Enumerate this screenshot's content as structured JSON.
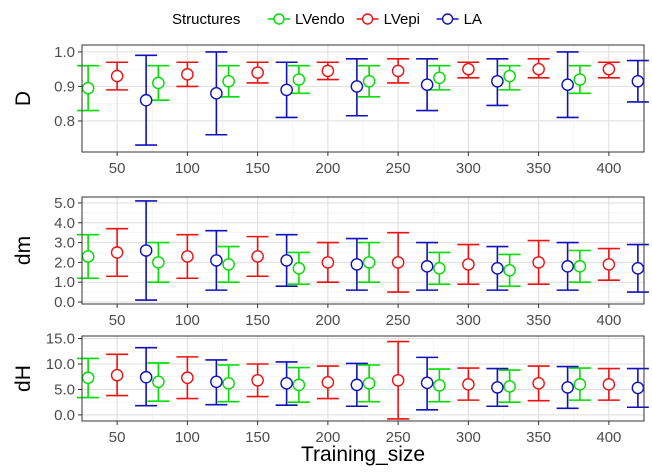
{
  "chart_data": {
    "type": "errorbar",
    "legend": {
      "title": "Structures",
      "position": "top",
      "entries": [
        {
          "name": "LVendo",
          "color": "#00dd00"
        },
        {
          "name": "LVepi",
          "color": "#ee1111"
        },
        {
          "name": "LA",
          "color": "#1111bb"
        }
      ]
    },
    "xlabel": "Training_size",
    "categories": [
      "50",
      "100",
      "150",
      "200",
      "250",
      "300",
      "350",
      "400"
    ],
    "panels": [
      {
        "ylabel": "D",
        "ylim": [
          0.71,
          1.02
        ],
        "yticks": [
          0.8,
          0.9,
          1.0
        ],
        "ytick_labels": [
          "0.8",
          "0.9",
          "1.0"
        ],
        "series": [
          {
            "name": "LVendo",
            "mean": [
              0.895,
              0.91,
              0.915,
              0.92,
              0.915,
              0.925,
              0.93,
              0.92
            ],
            "lower": [
              0.83,
              0.86,
              0.87,
              0.88,
              0.87,
              0.89,
              0.89,
              0.88
            ],
            "upper": [
              0.96,
              0.96,
              0.96,
              0.96,
              0.96,
              0.96,
              0.96,
              0.96
            ]
          },
          {
            "name": "LVepi",
            "mean": [
              0.93,
              0.935,
              0.94,
              0.945,
              0.945,
              0.95,
              0.95,
              0.95
            ],
            "lower": [
              0.89,
              0.9,
              0.91,
              0.92,
              0.91,
              0.925,
              0.925,
              0.925
            ],
            "upper": [
              0.97,
              0.97,
              0.97,
              0.97,
              0.98,
              0.97,
              0.98,
              0.97
            ]
          },
          {
            "name": "LA",
            "mean": [
              0.86,
              0.88,
              0.89,
              0.9,
              0.905,
              0.915,
              0.905,
              0.915
            ],
            "lower": [
              0.73,
              0.76,
              0.81,
              0.815,
              0.83,
              0.845,
              0.81,
              0.855
            ],
            "upper": [
              0.99,
              1.0,
              0.97,
              0.98,
              0.98,
              0.98,
              1.0,
              0.975
            ]
          }
        ]
      },
      {
        "ylabel": "dm",
        "ylim": [
          -0.1,
          5.3
        ],
        "yticks": [
          0,
          1,
          2,
          3,
          4,
          5
        ],
        "ytick_labels": [
          "0.0",
          "1.0",
          "2.0",
          "3.0",
          "4.0",
          "5.0"
        ],
        "series": [
          {
            "name": "LVendo",
            "mean": [
              2.3,
              2.0,
              1.9,
              1.7,
              2.0,
              1.7,
              1.6,
              1.8
            ],
            "lower": [
              1.2,
              1.0,
              1.0,
              0.9,
              1.0,
              0.9,
              0.8,
              1.0
            ],
            "upper": [
              3.4,
              3.0,
              2.8,
              2.5,
              3.0,
              2.5,
              2.4,
              2.6
            ]
          },
          {
            "name": "LVepi",
            "mean": [
              2.5,
              2.3,
              2.3,
              2.0,
              2.0,
              1.9,
              2.0,
              1.9
            ],
            "lower": [
              1.3,
              1.2,
              1.3,
              1.0,
              0.5,
              0.9,
              0.9,
              1.1
            ],
            "upper": [
              3.7,
              3.4,
              3.3,
              3.0,
              3.5,
              2.9,
              3.1,
              2.7
            ]
          },
          {
            "name": "LA",
            "mean": [
              2.6,
              2.1,
              2.1,
              1.9,
              1.8,
              1.7,
              1.8,
              1.7
            ],
            "lower": [
              0.1,
              0.6,
              0.8,
              0.6,
              0.6,
              0.6,
              0.6,
              0.5
            ],
            "upper": [
              5.1,
              3.6,
              3.4,
              3.2,
              3.0,
              2.8,
              3.0,
              2.9
            ]
          }
        ]
      },
      {
        "ylabel": "dH",
        "ylim": [
          -1.2,
          15.5
        ],
        "yticks": [
          0,
          5,
          10,
          15
        ],
        "ytick_labels": [
          "0.0",
          "5.0",
          "10.0",
          "15.0"
        ],
        "series": [
          {
            "name": "LVendo",
            "mean": [
              7.3,
              6.5,
              6.2,
              5.9,
              6.2,
              5.8,
              5.6,
              6.0
            ],
            "lower": [
              3.4,
              2.7,
              2.6,
              2.5,
              2.6,
              2.6,
              2.5,
              2.9
            ],
            "upper": [
              11.1,
              10.2,
              9.8,
              9.3,
              9.8,
              9.0,
              8.8,
              9.2
            ]
          },
          {
            "name": "LVepi",
            "mean": [
              7.8,
              7.3,
              6.8,
              6.4,
              6.8,
              6.0,
              6.2,
              6.0
            ],
            "lower": [
              3.8,
              3.2,
              3.6,
              3.2,
              -0.8,
              2.9,
              2.8,
              2.9
            ],
            "upper": [
              11.9,
              11.4,
              10.0,
              9.6,
              14.4,
              9.2,
              9.6,
              9.1
            ]
          },
          {
            "name": "LA",
            "mean": [
              7.4,
              6.5,
              6.2,
              5.9,
              6.3,
              5.4,
              5.4,
              5.3
            ],
            "lower": [
              1.8,
              2.0,
              1.9,
              1.7,
              1.0,
              1.7,
              1.3,
              1.5
            ],
            "upper": [
              13.2,
              10.8,
              10.4,
              10.1,
              11.3,
              9.1,
              9.5,
              9.1
            ]
          }
        ]
      }
    ]
  }
}
